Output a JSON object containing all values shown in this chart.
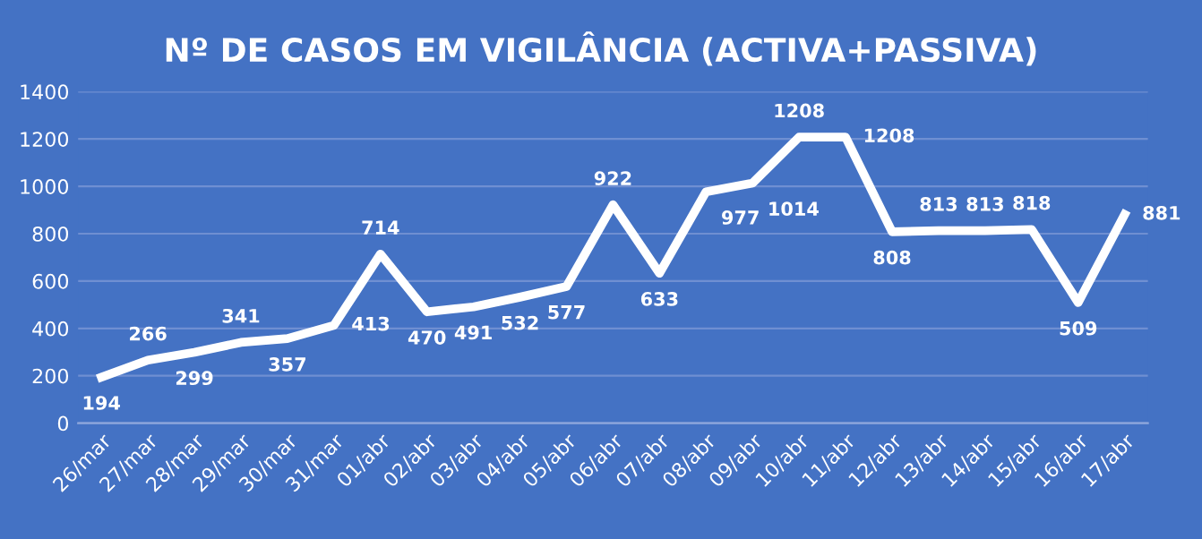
{
  "chart_data": {
    "type": "line",
    "title": "Nº DE CASOS EM VIGILÂNCIA (ACTIVA+PASSIVA)",
    "categories": [
      "26/mar",
      "27/mar",
      "28/mar",
      "29/mar",
      "30/mar",
      "31/mar",
      "01/abr",
      "02/abr",
      "03/abr",
      "04/abr",
      "05/abr",
      "06/abr",
      "07/abr",
      "08/abr",
      "09/abr",
      "10/abr",
      "11/abr",
      "12/abr",
      "13/abr",
      "14/abr",
      "15/abr",
      "16/abr",
      "17/abr"
    ],
    "series": [
      {
        "color": "#ffffff",
        "values": [
          194,
          266,
          299,
          341,
          357,
          413,
          714,
          470,
          491,
          532,
          577,
          922,
          633,
          977,
          1014,
          1208,
          1208,
          808,
          813,
          813,
          818,
          509,
          881
        ]
      }
    ],
    "ylim": [
      0,
      1400
    ],
    "yticks": [
      0,
      200,
      400,
      600,
      800,
      1000,
      1200,
      1400
    ],
    "grid": "y",
    "data_labels": true,
    "marker": "none",
    "line_style": "solid"
  }
}
